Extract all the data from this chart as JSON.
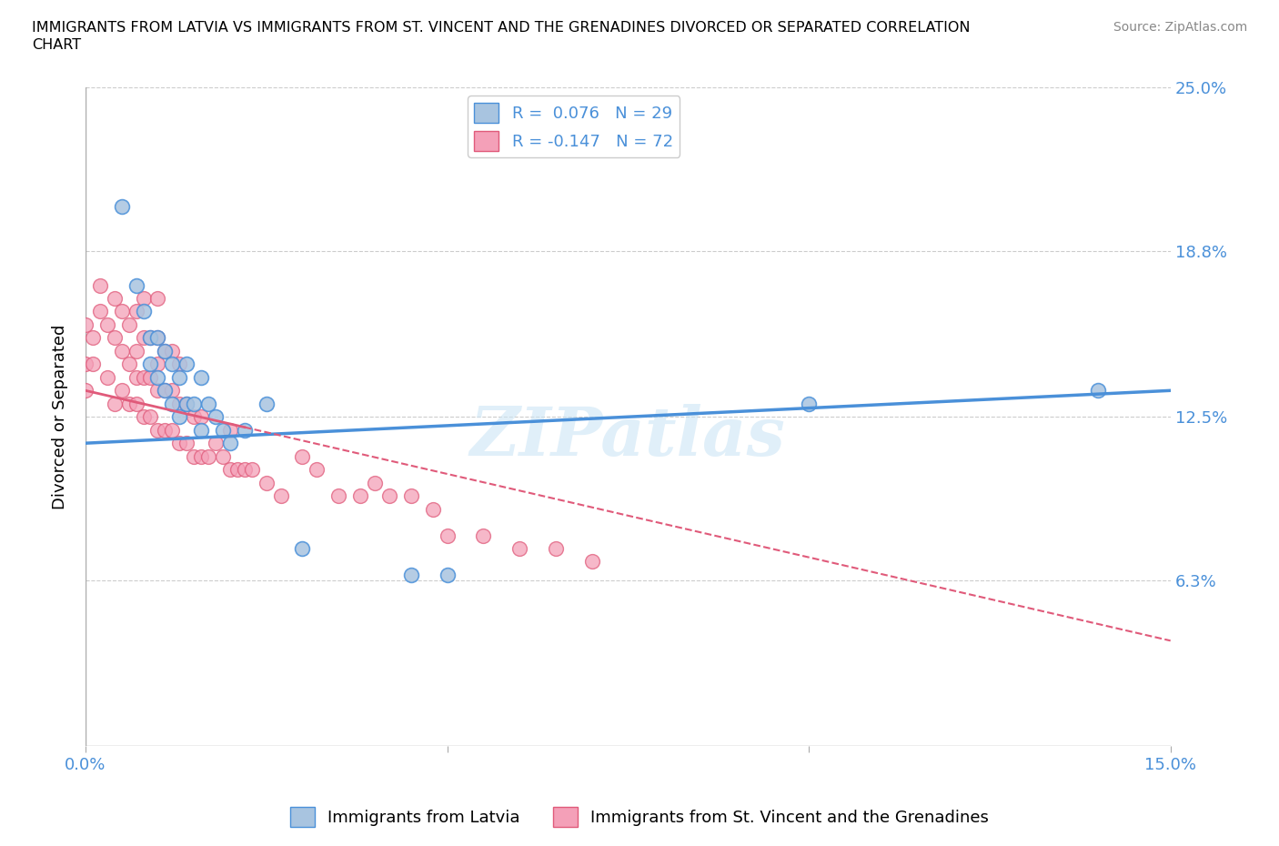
{
  "title": "IMMIGRANTS FROM LATVIA VS IMMIGRANTS FROM ST. VINCENT AND THE GRENADINES DIVORCED OR SEPARATED CORRELATION\nCHART",
  "source": "Source: ZipAtlas.com",
  "ylabel": "Divorced or Separated",
  "xlim": [
    0.0,
    0.15
  ],
  "ylim": [
    0.0,
    0.25
  ],
  "yticks": [
    0.0,
    0.063,
    0.125,
    0.188,
    0.25
  ],
  "yticklabels": [
    "",
    "6.3%",
    "12.5%",
    "18.8%",
    "25.0%"
  ],
  "hlines": [
    0.063,
    0.125,
    0.188,
    0.25
  ],
  "legend1_label": "R =  0.076   N = 29",
  "legend2_label": "R = -0.147   N = 72",
  "legend_color1": "#a8c4e0",
  "legend_color2": "#f4a0b8",
  "line_color1": "#4a90d9",
  "line_color2": "#e05a7a",
  "watermark": "ZIPatlas",
  "latvia_x": [
    0.005,
    0.007,
    0.008,
    0.009,
    0.009,
    0.01,
    0.01,
    0.011,
    0.011,
    0.012,
    0.012,
    0.013,
    0.013,
    0.014,
    0.014,
    0.015,
    0.016,
    0.016,
    0.017,
    0.018,
    0.019,
    0.02,
    0.022,
    0.025,
    0.03,
    0.045,
    0.05,
    0.1,
    0.14
  ],
  "latvia_y": [
    0.205,
    0.175,
    0.165,
    0.155,
    0.145,
    0.14,
    0.155,
    0.135,
    0.15,
    0.13,
    0.145,
    0.125,
    0.14,
    0.13,
    0.145,
    0.13,
    0.12,
    0.14,
    0.13,
    0.125,
    0.12,
    0.115,
    0.12,
    0.13,
    0.075,
    0.065,
    0.065,
    0.13,
    0.135
  ],
  "svg_x": [
    0.0,
    0.0,
    0.0,
    0.001,
    0.001,
    0.002,
    0.002,
    0.003,
    0.003,
    0.004,
    0.004,
    0.004,
    0.005,
    0.005,
    0.005,
    0.006,
    0.006,
    0.006,
    0.007,
    0.007,
    0.007,
    0.007,
    0.008,
    0.008,
    0.008,
    0.008,
    0.009,
    0.009,
    0.009,
    0.01,
    0.01,
    0.01,
    0.01,
    0.01,
    0.011,
    0.011,
    0.011,
    0.012,
    0.012,
    0.012,
    0.013,
    0.013,
    0.013,
    0.014,
    0.014,
    0.015,
    0.015,
    0.016,
    0.016,
    0.017,
    0.018,
    0.019,
    0.02,
    0.02,
    0.021,
    0.022,
    0.023,
    0.025,
    0.027,
    0.03,
    0.032,
    0.035,
    0.038,
    0.04,
    0.042,
    0.045,
    0.048,
    0.05,
    0.055,
    0.06,
    0.065,
    0.07
  ],
  "svg_y": [
    0.135,
    0.145,
    0.16,
    0.145,
    0.155,
    0.165,
    0.175,
    0.14,
    0.16,
    0.13,
    0.155,
    0.17,
    0.135,
    0.15,
    0.165,
    0.13,
    0.145,
    0.16,
    0.13,
    0.14,
    0.15,
    0.165,
    0.125,
    0.14,
    0.155,
    0.17,
    0.125,
    0.14,
    0.155,
    0.12,
    0.135,
    0.145,
    0.155,
    0.17,
    0.12,
    0.135,
    0.15,
    0.12,
    0.135,
    0.15,
    0.115,
    0.13,
    0.145,
    0.115,
    0.13,
    0.11,
    0.125,
    0.11,
    0.125,
    0.11,
    0.115,
    0.11,
    0.105,
    0.12,
    0.105,
    0.105,
    0.105,
    0.1,
    0.095,
    0.11,
    0.105,
    0.095,
    0.095,
    0.1,
    0.095,
    0.095,
    0.09,
    0.08,
    0.08,
    0.075,
    0.075,
    0.07
  ],
  "lat_line_x0": 0.0,
  "lat_line_x1": 0.15,
  "lat_line_y0": 0.115,
  "lat_line_y1": 0.135,
  "svg_line_x0": 0.0,
  "svg_line_x1": 0.15,
  "svg_line_y0": 0.135,
  "svg_line_y1": 0.04
}
